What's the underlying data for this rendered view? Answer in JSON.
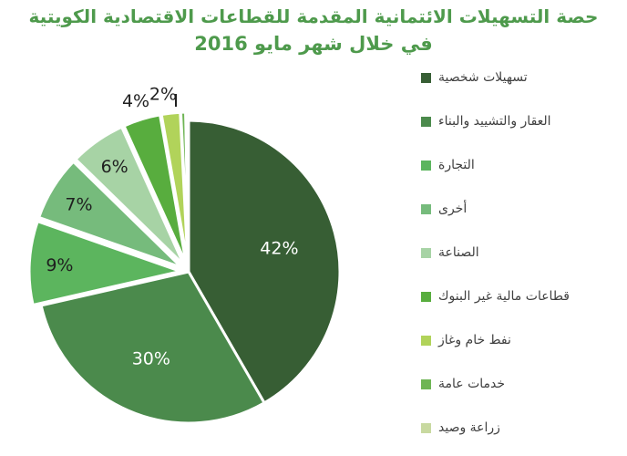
{
  "chart_data": {
    "type": "pie",
    "title": "حصة التسهيلات الائتمانية المقدمة للقطاعات الاقتصادية الكويتية",
    "subtitle": "في خلال  شهر مايو 2016",
    "legend_position": "right",
    "categories": [
      "تسهيلات شخصية",
      "العقار والتشييد والبناء",
      "التجارة",
      "أخرى",
      "الصناعة",
      "قطاعات مالية غير البنوك",
      "نفط خام وغاز",
      "خدمات عامة",
      "زراعة وصيد"
    ],
    "values": [
      42,
      30,
      9,
      7,
      6,
      4,
      2,
      0.5,
      0.3
    ],
    "data_labels": [
      "42%",
      "30%",
      "9%",
      "7%",
      "6%",
      "4%",
      "2%",
      "",
      ""
    ],
    "colors": [
      "#375e34",
      "#4b8a4c",
      "#5cb55e",
      "#76bb7c",
      "#a7d3a5",
      "#58ad3e",
      "#b1d35a",
      "#6fb555",
      "#c8d9a0"
    ]
  }
}
